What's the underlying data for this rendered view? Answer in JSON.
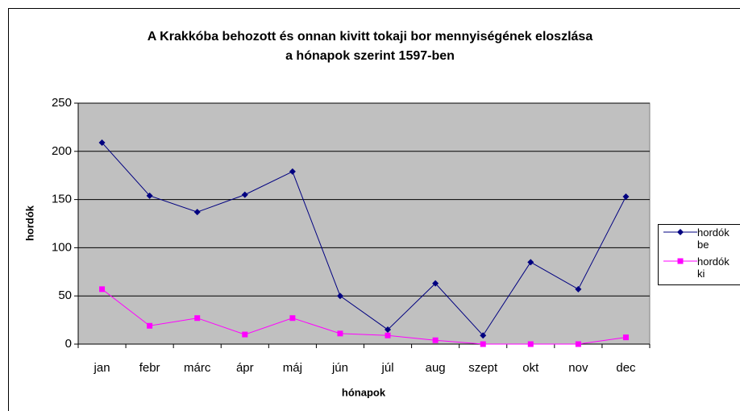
{
  "chart_data": {
    "type": "line",
    "title": "A Krakkóba behozott és onnan kivitt tokaji bor mennyiségének eloszlása",
    "subtitle": "a hónapok szerint 1597-ben",
    "x_label": "hónapok",
    "y_label": "hordók",
    "categories": [
      "jan",
      "febr",
      "márc",
      "ápr",
      "máj",
      "jún",
      "júl",
      "aug",
      "szept",
      "okt",
      "nov",
      "dec"
    ],
    "series": [
      {
        "name": "hordók be",
        "color": "#000080",
        "marker": "diamond",
        "values": [
          209,
          154,
          137,
          155,
          179,
          50,
          15,
          63,
          9,
          85,
          57,
          153
        ]
      },
      {
        "name": "hordók ki",
        "color": "#ff00ff",
        "marker": "square",
        "values": [
          57,
          19,
          27,
          10,
          27,
          11,
          9,
          4,
          0,
          0,
          0,
          7
        ]
      }
    ],
    "ylim": [
      0,
      250
    ],
    "yticks": [
      0,
      50,
      100,
      150,
      200,
      250
    ],
    "grid": true,
    "plot_background": "#c0c0c0",
    "legend": "right"
  }
}
